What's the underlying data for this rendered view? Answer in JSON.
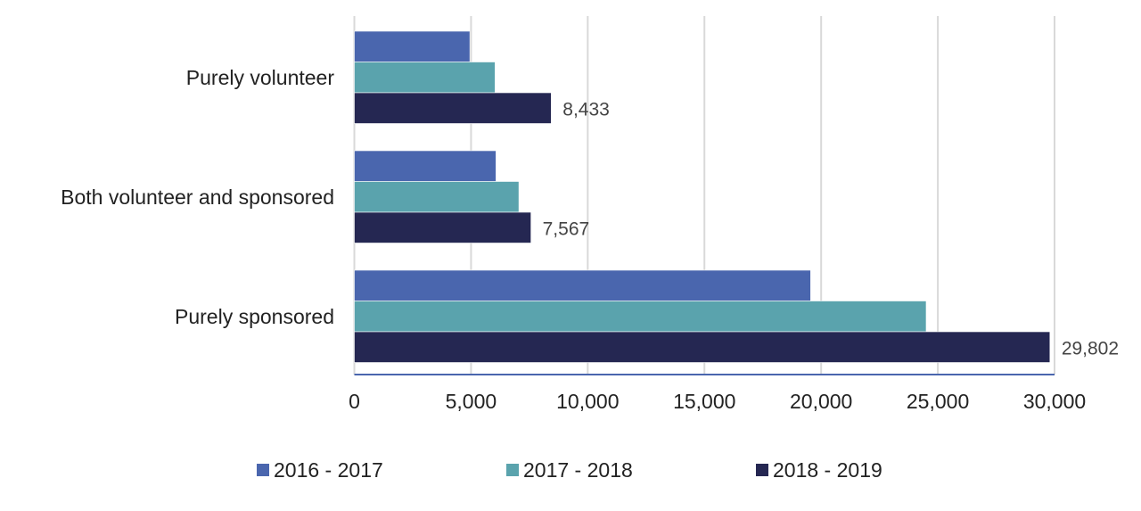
{
  "chart_data": {
    "type": "bar",
    "orientation": "horizontal",
    "title": "",
    "xlabel": "",
    "ylabel": "",
    "categories": [
      "Purely volunteer",
      "Both volunteer and sponsored",
      "Purely sponsored"
    ],
    "series": [
      {
        "name": "2016 - 2017",
        "color": "#4a66ae",
        "values": [
          4950,
          6070,
          19550
        ]
      },
      {
        "name": "2017 - 2018",
        "color": "#5aa3ad",
        "values": [
          6030,
          7050,
          24500
        ]
      },
      {
        "name": "2018 - 2019",
        "color": "#252752",
        "values": [
          8433,
          7567,
          29802
        ]
      }
    ],
    "data_labels": [
      "8,433",
      "7,567",
      "29,802"
    ],
    "xlim": [
      0,
      30000
    ],
    "xticks": [
      0,
      5000,
      10000,
      15000,
      20000,
      25000,
      30000
    ],
    "xtick_labels": [
      "0",
      "5,000",
      "10,000",
      "15,000",
      "20,000",
      "25,000",
      "30,000"
    ],
    "grid": true,
    "legend_position": "bottom"
  }
}
